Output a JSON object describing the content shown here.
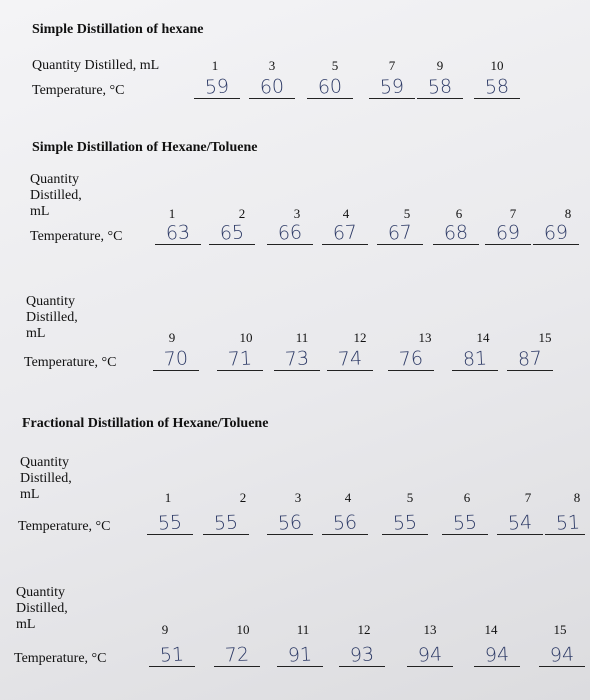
{
  "sections": [
    {
      "title": "Simple Distillation of hexane",
      "rows": [
        {
          "quantity_label": "Quantity Distilled, mL",
          "quantities": [
            "1",
            "3",
            "5",
            "7",
            "9",
            "10"
          ],
          "temperature_label": "Temperature, °C",
          "temperatures": [
            "59",
            "60",
            "60",
            "59",
            "58",
            "58"
          ]
        }
      ]
    },
    {
      "title": "Simple Distillation of Hexane/Toluene",
      "rows": [
        {
          "quantity_label": "Quantity Distilled, mL",
          "quantities": [
            "1",
            "2",
            "3",
            "4",
            "5",
            "6",
            "7",
            "8"
          ],
          "temperature_label": "Temperature, °C",
          "temperatures": [
            "63",
            "65",
            "66",
            "67",
            "67",
            "68",
            "69",
            "69"
          ]
        },
        {
          "quantity_label": "Quantity Distilled, mL",
          "quantities": [
            "9",
            "10",
            "11",
            "12",
            "13",
            "14",
            "15"
          ],
          "temperature_label": "Temperature, °C",
          "temperatures": [
            "70",
            "71",
            "73",
            "74",
            "76",
            "81",
            "87"
          ]
        }
      ]
    },
    {
      "title": "Fractional Distillation of Hexane/Toluene",
      "rows": [
        {
          "quantity_label": "Quantity Distilled, mL",
          "quantities": [
            "1",
            "2",
            "3",
            "4",
            "5",
            "6",
            "7",
            "8"
          ],
          "temperature_label": "Temperature, °C",
          "temperatures": [
            "55",
            "55",
            "56",
            "56",
            "55",
            "55",
            "54",
            "51"
          ]
        },
        {
          "quantity_label": "Quantity Distilled, mL",
          "quantities": [
            "9",
            "10",
            "11",
            "12",
            "13",
            "14",
            "15"
          ],
          "temperature_label": "Temperature, °C",
          "temperatures": [
            "51",
            "72",
            "91",
            "93",
            "94",
            "94",
            "94"
          ]
        }
      ]
    }
  ]
}
